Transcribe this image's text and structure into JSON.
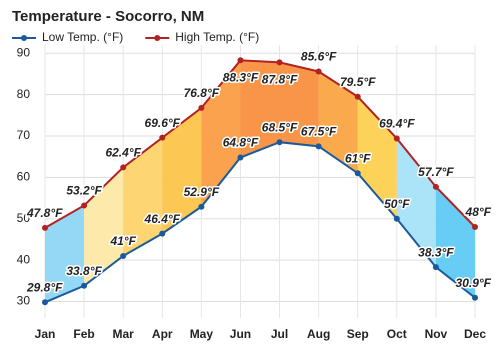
{
  "chart_data": {
    "type": "line",
    "title": "Temperature - Socorro, NM",
    "categories": [
      "Jan",
      "Feb",
      "Mar",
      "Apr",
      "May",
      "Jun",
      "Jul",
      "Aug",
      "Sep",
      "Oct",
      "Nov",
      "Dec"
    ],
    "series": [
      {
        "name": "Low Temp. (°F)",
        "color": "#1a5a9c",
        "values": [
          29.8,
          33.8,
          41,
          46.4,
          52.9,
          64.8,
          68.5,
          67.5,
          61,
          50,
          38.3,
          30.9
        ],
        "value_labels": [
          "29.8°F",
          "33.8°F",
          "41°F",
          "46.4°F",
          "52.9°F",
          "64.8°F",
          "68.5°F",
          "67.5°F",
          "61°F",
          "50°F",
          "38.3°F",
          "30.9°F"
        ],
        "label_color": "#1a5aa8"
      },
      {
        "name": "High Temp. (°F)",
        "color": "#b22222",
        "values": [
          47.8,
          53.2,
          62.4,
          69.6,
          76.8,
          88.3,
          87.8,
          85.6,
          79.5,
          69.4,
          57.7,
          48
        ],
        "value_labels": [
          "47.8°F",
          "53.2°F",
          "62.4°F",
          "69.6°F",
          "76.8°F",
          "88.3°F",
          "87.8°F",
          "85.6°F",
          "79.5°F",
          "69.4°F",
          "57.7°F",
          "48°F"
        ],
        "label_color": "#a01818"
      }
    ],
    "band_colors": [
      "#8fd6f6",
      "#fde9a6",
      "#fdd36a",
      "#fcc44a",
      "#fb9d45",
      "#f98f3e",
      "#f98f3e",
      "#fba443",
      "#fdd04f",
      "#a6e2f8",
      "#5fcaf4"
    ],
    "ylim": [
      26,
      92
    ],
    "yticks": [
      30,
      40,
      50,
      60,
      70,
      80,
      90
    ],
    "grid": true
  }
}
